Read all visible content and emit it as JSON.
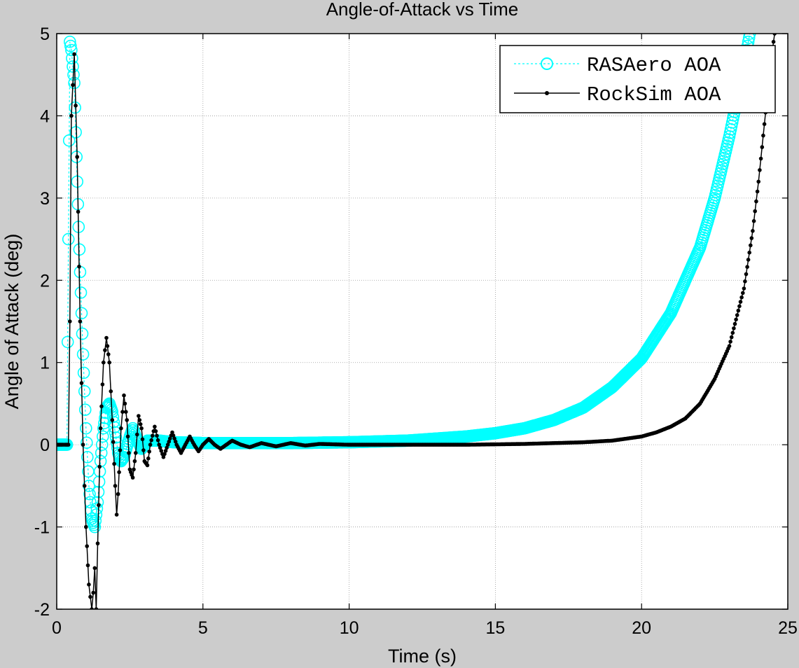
{
  "chart_data": {
    "type": "line",
    "title": "Angle-of-Attack vs Time",
    "xlabel": "Time (s)",
    "ylabel": "Angle of Attack (deg)",
    "xlim": [
      0,
      25
    ],
    "ylim": [
      -2,
      5
    ],
    "xticks": [
      0,
      5,
      10,
      15,
      20,
      25
    ],
    "yticks": [
      -2,
      -1,
      0,
      1,
      2,
      3,
      4,
      5
    ],
    "grid": true,
    "legend_position": "top-right",
    "colors": {
      "figure_bg": "#cccccc",
      "axes_bg": "#ffffff",
      "rasaero": "#00ffff",
      "rocksim": "#000000",
      "grid": "#999999"
    },
    "series": [
      {
        "name": "RASAero AOA",
        "style": "dashed line with open circle markers",
        "color": "#00ffff",
        "points": [
          [
            0.0,
            0.0
          ],
          [
            0.1,
            0.0
          ],
          [
            0.2,
            0.0
          ],
          [
            0.3,
            0.0
          ],
          [
            0.35,
            0.0
          ],
          [
            0.4,
            2.5
          ],
          [
            0.45,
            4.9
          ],
          [
            0.5,
            4.8
          ],
          [
            0.6,
            4.4
          ],
          [
            0.7,
            3.2
          ],
          [
            0.8,
            2.1
          ],
          [
            0.9,
            1.1
          ],
          [
            1.0,
            0.2
          ],
          [
            1.1,
            -0.5
          ],
          [
            1.2,
            -0.9
          ],
          [
            1.3,
            -1.0
          ],
          [
            1.4,
            -0.7
          ],
          [
            1.5,
            -0.2
          ],
          [
            1.6,
            0.2
          ],
          [
            1.7,
            0.45
          ],
          [
            1.8,
            0.5
          ],
          [
            1.9,
            0.4
          ],
          [
            2.0,
            0.15
          ],
          [
            2.1,
            -0.1
          ],
          [
            2.2,
            -0.2
          ],
          [
            2.3,
            -0.15
          ],
          [
            2.5,
            0.1
          ],
          [
            2.6,
            0.2
          ],
          [
            2.7,
            0.1
          ],
          [
            2.9,
            -0.05
          ],
          [
            3.1,
            0.05
          ],
          [
            3.5,
            0.05
          ],
          [
            4.0,
            0.03
          ],
          [
            5.0,
            0.02
          ],
          [
            6.0,
            0.02
          ],
          [
            8.0,
            0.02
          ],
          [
            10.0,
            0.03
          ],
          [
            12.0,
            0.05
          ],
          [
            14.0,
            0.1
          ],
          [
            15.0,
            0.14
          ],
          [
            16.0,
            0.2
          ],
          [
            17.0,
            0.3
          ],
          [
            18.0,
            0.45
          ],
          [
            19.0,
            0.7
          ],
          [
            20.0,
            1.05
          ],
          [
            21.0,
            1.6
          ],
          [
            22.0,
            2.4
          ],
          [
            22.5,
            3.0
          ],
          [
            23.0,
            3.75
          ],
          [
            23.5,
            4.6
          ],
          [
            23.7,
            5.0
          ]
        ]
      },
      {
        "name": "RockSim AOA",
        "style": "solid line with dot markers",
        "color": "#000000",
        "points": [
          [
            0.0,
            0.0
          ],
          [
            0.1,
            0.0
          ],
          [
            0.2,
            0.0
          ],
          [
            0.3,
            0.0
          ],
          [
            0.4,
            0.0
          ],
          [
            0.45,
            1.5
          ],
          [
            0.5,
            4.0
          ],
          [
            0.6,
            4.75
          ],
          [
            0.7,
            3.5
          ],
          [
            0.8,
            1.5
          ],
          [
            0.9,
            0.0
          ],
          [
            1.0,
            -1.0
          ],
          [
            1.1,
            -1.7
          ],
          [
            1.2,
            -2.0
          ],
          [
            1.25,
            -1.8
          ],
          [
            1.3,
            -1.5
          ],
          [
            1.35,
            -2.0
          ],
          [
            1.4,
            -1.2
          ],
          [
            1.5,
            0.2
          ],
          [
            1.6,
            1.0
          ],
          [
            1.7,
            1.3
          ],
          [
            1.8,
            1.0
          ],
          [
            1.9,
            0.3
          ],
          [
            2.0,
            -0.5
          ],
          [
            2.05,
            -0.85
          ],
          [
            2.1,
            -0.6
          ],
          [
            2.2,
            0.2
          ],
          [
            2.3,
            0.6
          ],
          [
            2.4,
            0.3
          ],
          [
            2.5,
            -0.3
          ],
          [
            2.6,
            -0.4
          ],
          [
            2.7,
            -0.1
          ],
          [
            2.8,
            0.35
          ],
          [
            2.9,
            0.2
          ],
          [
            3.0,
            -0.2
          ],
          [
            3.1,
            -0.25
          ],
          [
            3.2,
            0.0
          ],
          [
            3.35,
            0.22
          ],
          [
            3.5,
            0.0
          ],
          [
            3.65,
            -0.15
          ],
          [
            3.8,
            0.0
          ],
          [
            3.95,
            0.15
          ],
          [
            4.1,
            0.0
          ],
          [
            4.25,
            -0.1
          ],
          [
            4.4,
            0.0
          ],
          [
            4.55,
            0.1
          ],
          [
            4.7,
            0.0
          ],
          [
            4.85,
            -0.08
          ],
          [
            5.0,
            0.0
          ],
          [
            5.2,
            0.07
          ],
          [
            5.4,
            0.0
          ],
          [
            5.6,
            -0.05
          ],
          [
            5.8,
            0.0
          ],
          [
            6.0,
            0.05
          ],
          [
            6.3,
            0.0
          ],
          [
            6.6,
            -0.03
          ],
          [
            7.0,
            0.02
          ],
          [
            7.5,
            -0.02
          ],
          [
            8.0,
            0.02
          ],
          [
            8.5,
            -0.01
          ],
          [
            9.0,
            0.01
          ],
          [
            10.0,
            0.0
          ],
          [
            12.0,
            0.0
          ],
          [
            14.0,
            0.0
          ],
          [
            16.0,
            0.01
          ],
          [
            17.0,
            0.02
          ],
          [
            18.0,
            0.03
          ],
          [
            19.0,
            0.05
          ],
          [
            20.0,
            0.1
          ],
          [
            20.5,
            0.15
          ],
          [
            21.0,
            0.22
          ],
          [
            21.5,
            0.32
          ],
          [
            22.0,
            0.5
          ],
          [
            22.5,
            0.8
          ],
          [
            23.0,
            1.2
          ],
          [
            23.5,
            1.9
          ],
          [
            23.8,
            2.6
          ],
          [
            24.0,
            3.2
          ],
          [
            24.2,
            3.9
          ],
          [
            24.4,
            4.6
          ],
          [
            24.55,
            5.0
          ]
        ]
      }
    ]
  }
}
